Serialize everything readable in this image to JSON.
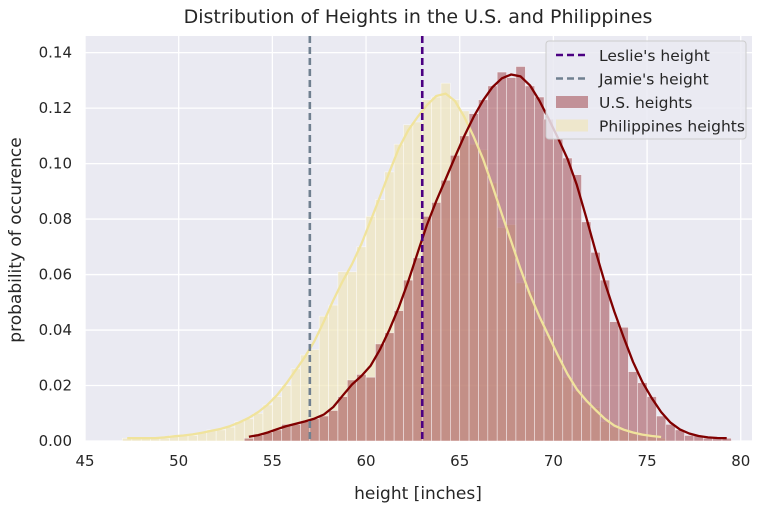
{
  "chart_data": {
    "type": "histogram",
    "title": "Distribution of Heights in the U.S. and Philippines",
    "xlabel": "height [inches]",
    "ylabel": "probability of occurence",
    "xlim": [
      45,
      80.6
    ],
    "ylim": [
      0,
      0.146
    ],
    "xticks": [
      45,
      50,
      55,
      60,
      65,
      70,
      75,
      80
    ],
    "yticks": [
      0.0,
      0.02,
      0.04,
      0.06,
      0.08,
      0.1,
      0.12,
      0.14
    ],
    "ytick_labels": [
      "0.00",
      "0.02",
      "0.04",
      "0.06",
      "0.08",
      "0.10",
      "0.12",
      "0.14"
    ],
    "grid": true,
    "legend_position": "top-right",
    "bin_width": 0.5,
    "reference_lines": [
      {
        "name": "Leslie's height",
        "x": 63,
        "color": "#4b0082",
        "style": "dashed"
      },
      {
        "name": "Jamie's height",
        "x": 57,
        "color": "#708090",
        "style": "dashed"
      }
    ],
    "series": [
      {
        "name": "U.S. heights",
        "color": "#a0474f",
        "kde_color": "#800000",
        "bin_start": 53.5,
        "values": [
          0.001,
          0.002,
          0.003,
          0.004,
          0.006,
          0.006,
          0.007,
          0.008,
          0.009,
          0.011,
          0.016,
          0.022,
          0.024,
          0.023,
          0.035,
          0.039,
          0.047,
          0.058,
          0.066,
          0.081,
          0.086,
          0.094,
          0.103,
          0.11,
          0.118,
          0.123,
          0.128,
          0.133,
          0.131,
          0.135,
          0.128,
          0.124,
          0.116,
          0.109,
          0.102,
          0.096,
          0.079,
          0.068,
          0.058,
          0.043,
          0.041,
          0.025,
          0.021,
          0.016,
          0.009,
          0.006,
          0.004,
          0.002,
          0.002,
          0.001,
          0.001,
          0.001
        ]
      },
      {
        "name": "Philippines heights",
        "color": "#f0e6bc",
        "kde_color": "#f0e39c",
        "bin_start": 47.0,
        "values": [
          0.001,
          0.001,
          0.001,
          0.001,
          0.001,
          0.002,
          0.002,
          0.002,
          0.003,
          0.004,
          0.004,
          0.005,
          0.007,
          0.008,
          0.01,
          0.013,
          0.016,
          0.02,
          0.026,
          0.031,
          0.033,
          0.045,
          0.049,
          0.061,
          0.061,
          0.07,
          0.081,
          0.087,
          0.097,
          0.107,
          0.114,
          0.115,
          0.123,
          0.124,
          0.129,
          0.123,
          0.119,
          0.107,
          0.105,
          0.093,
          0.077,
          0.078,
          0.057,
          0.054,
          0.044,
          0.038,
          0.031,
          0.023,
          0.018,
          0.014,
          0.012,
          0.007,
          0.005,
          0.004,
          0.003,
          0.002,
          0.002,
          0.001
        ]
      }
    ]
  }
}
